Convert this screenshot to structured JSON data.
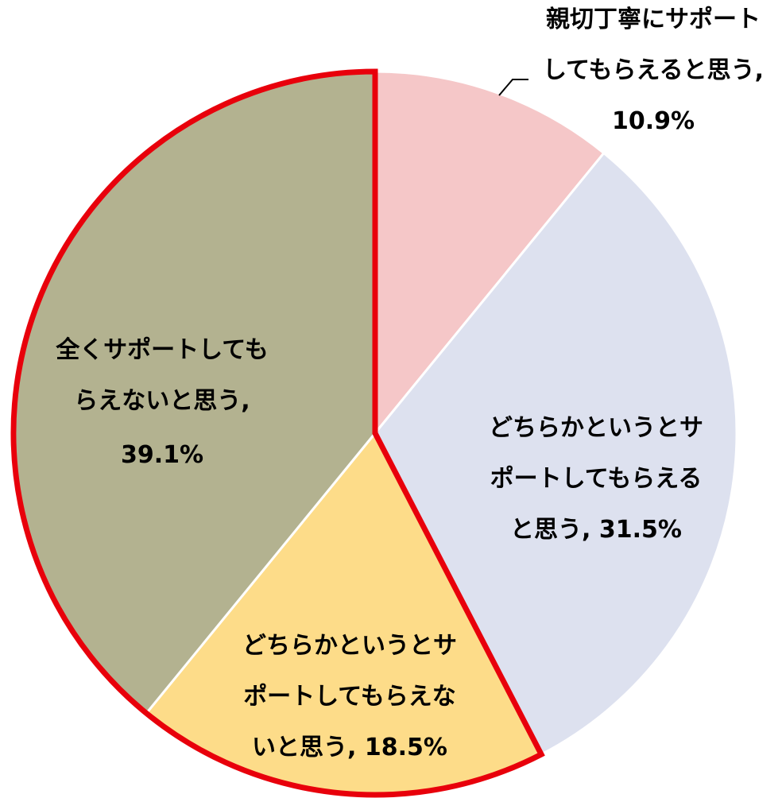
{
  "chart_data": {
    "type": "pie",
    "start_angle_deg": 0,
    "direction": "clockwise",
    "slices": [
      {
        "label": "親切丁寧にサポートしてもらえると思う",
        "value": 10.9,
        "value_text": "10.9%",
        "color": "#f5c7c8",
        "label_lines": [
          "親切丁寧にサポート",
          "してもらえると思う,",
          "10.9%"
        ]
      },
      {
        "label": "どちらかというとサポートしてもらえると思う",
        "value": 31.5,
        "value_text": "31.5%",
        "color": "#dde1ef",
        "label_lines": [
          "どちらかというとサ",
          "ポートしてもらえる",
          "と思う, 31.5%"
        ]
      },
      {
        "label": "どちらかというとサポートしてもらえないと思う",
        "value": 18.5,
        "value_text": "18.5%",
        "color": "#fddc89",
        "label_lines": [
          "どちらかというとサ",
          "ポートしてもらえな",
          "いと思う, 18.5%"
        ]
      },
      {
        "label": "全くサポートしてもらえないと思う",
        "value": 39.1,
        "value_text": "39.1%",
        "color": "#b3b290",
        "label_lines": [
          "全くサポートしても",
          "らえないと思う,",
          "39.1%"
        ]
      }
    ],
    "highlight": {
      "slices": [
        2,
        3
      ],
      "stroke_color": "#e8000b"
    },
    "leader_line_color": "#000000"
  }
}
